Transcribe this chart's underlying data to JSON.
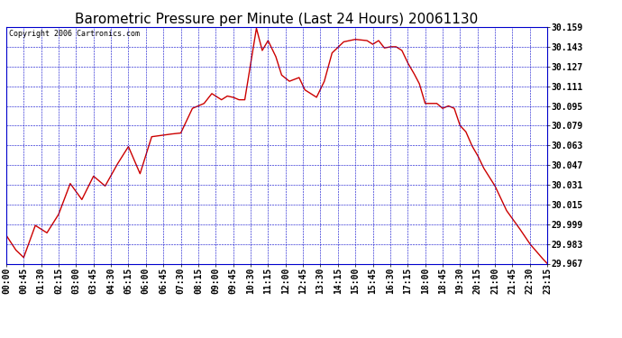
{
  "title": "Barometric Pressure per Minute (Last 24 Hours) 20061130",
  "copyright": "Copyright 2006 Cartronics.com",
  "line_color": "#cc0000",
  "background_color": "#ffffff",
  "plot_bg_color": "#ffffff",
  "grid_color": "#0000cc",
  "text_color": "#000000",
  "yticks": [
    29.967,
    29.983,
    29.999,
    30.015,
    30.031,
    30.047,
    30.063,
    30.079,
    30.095,
    30.111,
    30.127,
    30.143,
    30.159
  ],
  "xtick_labels": [
    "00:00",
    "00:45",
    "01:30",
    "02:15",
    "03:00",
    "03:45",
    "04:30",
    "05:15",
    "06:00",
    "06:45",
    "07:30",
    "08:15",
    "09:00",
    "09:45",
    "10:30",
    "11:15",
    "12:00",
    "12:45",
    "13:30",
    "14:15",
    "15:00",
    "15:45",
    "16:30",
    "17:15",
    "18:00",
    "18:45",
    "19:30",
    "20:15",
    "21:00",
    "21:45",
    "22:30",
    "23:15"
  ],
  "ymin": 29.967,
  "ymax": 30.159,
  "line_width": 1.0,
  "title_fontsize": 11,
  "tick_fontsize": 7,
  "copyright_fontsize": 6,
  "key_minutes": [
    0,
    25,
    45,
    75,
    105,
    135,
    165,
    195,
    225,
    255,
    285,
    315,
    345,
    375,
    420,
    450,
    480,
    495,
    510,
    530,
    555,
    570,
    585,
    600,
    615,
    645,
    660,
    675,
    695,
    710,
    730,
    755,
    770,
    800,
    820,
    840,
    870,
    900,
    930,
    945,
    960,
    975,
    990,
    1005,
    1020,
    1035,
    1050,
    1065,
    1080,
    1095,
    1110,
    1125,
    1140,
    1155,
    1170,
    1185,
    1200,
    1215,
    1230,
    1260,
    1290,
    1320,
    1350,
    1380,
    1395
  ],
  "key_values": [
    29.99,
    29.978,
    29.972,
    29.998,
    29.992,
    30.007,
    30.032,
    30.019,
    30.038,
    30.03,
    30.047,
    30.062,
    30.04,
    30.07,
    30.072,
    30.073,
    30.093,
    30.095,
    30.097,
    30.105,
    30.1,
    30.103,
    30.102,
    30.1,
    30.1,
    30.158,
    30.14,
    30.148,
    30.135,
    30.12,
    30.115,
    30.118,
    30.108,
    30.102,
    30.115,
    30.138,
    30.147,
    30.149,
    30.148,
    30.145,
    30.148,
    30.142,
    30.143,
    30.143,
    30.14,
    30.13,
    30.122,
    30.113,
    30.097,
    30.097,
    30.097,
    30.093,
    30.095,
    30.093,
    30.079,
    30.074,
    30.063,
    30.055,
    30.045,
    30.03,
    30.01,
    29.997,
    29.983,
    29.972,
    29.967
  ]
}
